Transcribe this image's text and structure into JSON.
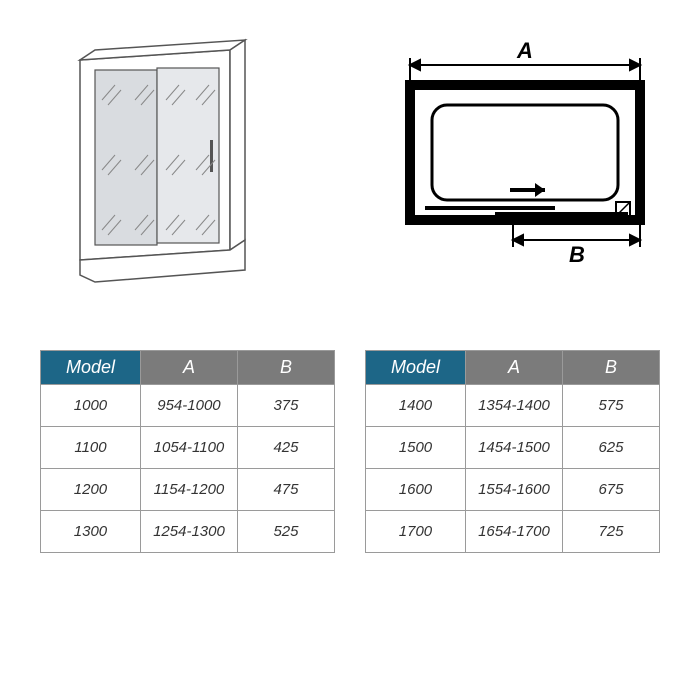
{
  "header_bg_model": "#1d6687",
  "header_bg_dim": "#7b7b7b",
  "border_color": "#9a9a9a",
  "dim_label_A": "A",
  "dim_label_B": "B",
  "columns": [
    "Model",
    "A",
    "B"
  ],
  "table1": {
    "rows": [
      [
        "1000",
        "954-1000",
        "375"
      ],
      [
        "1100",
        "1054-1100",
        "425"
      ],
      [
        "1200",
        "1154-1200",
        "475"
      ],
      [
        "1300",
        "1254-1300",
        "525"
      ]
    ]
  },
  "table2": {
    "rows": [
      [
        "1400",
        "1354-1400",
        "575"
      ],
      [
        "1500",
        "1454-1500",
        "625"
      ],
      [
        "1600",
        "1554-1600",
        "675"
      ],
      [
        "1700",
        "1654-1700",
        "725"
      ]
    ]
  }
}
